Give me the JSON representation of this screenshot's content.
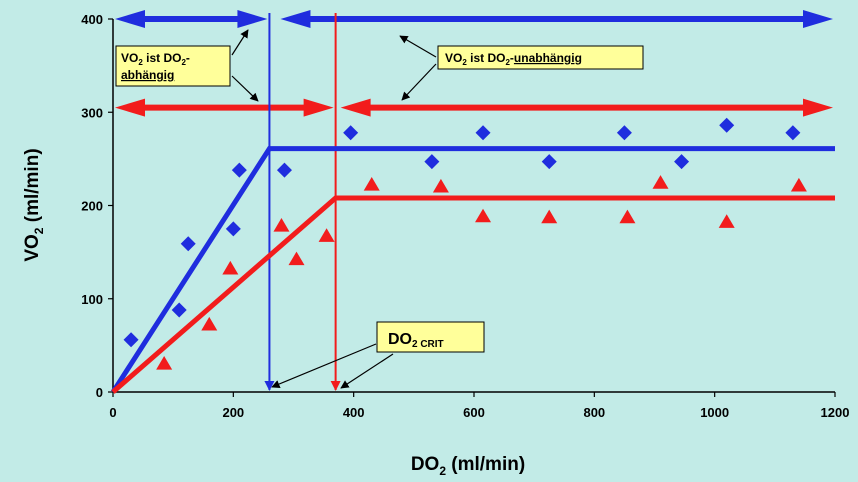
{
  "chart_data": {
    "type": "scatter",
    "xlabel": "DO",
    "xlabel_sub": "2",
    "xlabel_unit": " (ml/min)",
    "ylabel": "VO",
    "ylabel_sub": "2",
    "ylabel_unit": " (ml/min)",
    "xlim": [
      0,
      1200
    ],
    "ylim": [
      0,
      400
    ],
    "x_ticks": [
      0,
      200,
      400,
      600,
      800,
      1000,
      1200
    ],
    "y_ticks": [
      0,
      100,
      200,
      300,
      400
    ],
    "grid": false,
    "legend": "none",
    "colors": {
      "blue": "#1f2dde",
      "red": "#f21c1c",
      "background": "#c2ebe7",
      "note": "#ffff9a"
    },
    "series": [
      {
        "marker": "diamond",
        "color": "#1f2dde",
        "points": [
          [
            30,
            56
          ],
          [
            110,
            88
          ],
          [
            125,
            159
          ],
          [
            200,
            175
          ],
          [
            210,
            238
          ],
          [
            285,
            238
          ],
          [
            395,
            278
          ],
          [
            530,
            247
          ],
          [
            615,
            278
          ],
          [
            725,
            247
          ],
          [
            850,
            278
          ],
          [
            945,
            247
          ],
          [
            1020,
            286
          ],
          [
            1130,
            278
          ]
        ],
        "fit_line": [
          [
            0,
            0
          ],
          [
            260,
            261
          ],
          [
            1200,
            261
          ]
        ]
      },
      {
        "marker": "triangle",
        "color": "#f21c1c",
        "points": [
          [
            85,
            30
          ],
          [
            160,
            72
          ],
          [
            195,
            132
          ],
          [
            280,
            178
          ],
          [
            305,
            142
          ],
          [
            355,
            167
          ],
          [
            430,
            222
          ],
          [
            545,
            220
          ],
          [
            615,
            188
          ],
          [
            725,
            187
          ],
          [
            855,
            187
          ],
          [
            910,
            224
          ],
          [
            1020,
            182
          ],
          [
            1140,
            221
          ]
        ],
        "fit_line": [
          [
            0,
            0
          ],
          [
            370,
            208
          ],
          [
            1200,
            208
          ]
        ]
      }
    ],
    "vertical_lines": [
      {
        "x": 260,
        "color": "#1f2dde"
      },
      {
        "x": 370,
        "color": "#f21c1c"
      }
    ],
    "range_arrows": [
      {
        "color": "#1f2dde",
        "y": 400,
        "from": 0,
        "to": 260
      },
      {
        "color": "#1f2dde",
        "y": 400,
        "from": 275,
        "to": 1200
      },
      {
        "color": "#f21c1c",
        "y": 305,
        "from": 0,
        "to": 370
      },
      {
        "color": "#f21c1c",
        "y": 305,
        "from": 375,
        "to": 1200
      }
    ],
    "annotations": [
      {
        "id": "dependent",
        "line1": "VO",
        "line1_sub": "2",
        "line1_rest": " ist DO",
        "line1_sub2": "2",
        "line1_end": "-",
        "line2": "abhängig"
      },
      {
        "id": "independent",
        "prefix": "VO",
        "sub": "2",
        "mid": " ist DO",
        "sub2": "2",
        "mid2": "-",
        "underlined": "unabhängig"
      },
      {
        "id": "crit",
        "main": "DO",
        "sub": "2 CRIT"
      }
    ]
  }
}
